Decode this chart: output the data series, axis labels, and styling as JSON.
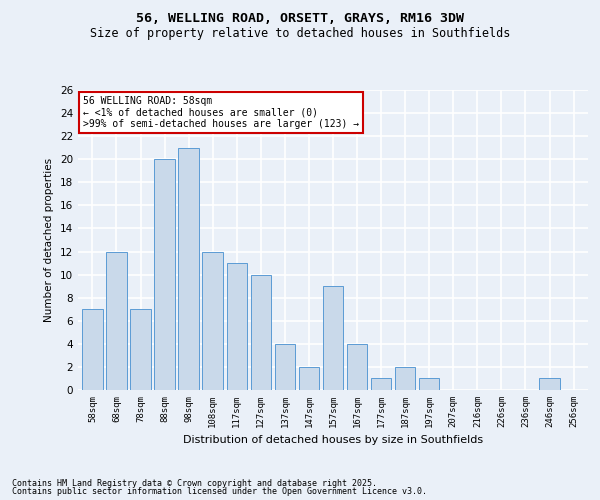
{
  "title": "56, WELLING ROAD, ORSETT, GRAYS, RM16 3DW",
  "subtitle": "Size of property relative to detached houses in Southfields",
  "xlabel": "Distribution of detached houses by size in Southfields",
  "ylabel": "Number of detached properties",
  "categories": [
    "58sqm",
    "68sqm",
    "78sqm",
    "88sqm",
    "98sqm",
    "108sqm",
    "117sqm",
    "127sqm",
    "137sqm",
    "147sqm",
    "157sqm",
    "167sqm",
    "177sqm",
    "187sqm",
    "197sqm",
    "207sqm",
    "216sqm",
    "226sqm",
    "236sqm",
    "246sqm",
    "256sqm"
  ],
  "values": [
    7,
    12,
    7,
    20,
    21,
    12,
    11,
    10,
    4,
    2,
    9,
    4,
    1,
    2,
    1,
    0,
    0,
    0,
    0,
    1,
    0
  ],
  "bar_color": "#c9d9ea",
  "bar_edge_color": "#5b9bd5",
  "background_color": "#eaf0f8",
  "plot_bg_color": "#eaf0f8",
  "grid_color": "#ffffff",
  "annotation_line1": "56 WELLING ROAD: 58sqm",
  "annotation_line2": "← <1% of detached houses are smaller (0)",
  "annotation_line3": ">99% of semi-detached houses are larger (123) →",
  "annotation_box_color": "#ffffff",
  "annotation_border_color": "#cc0000",
  "footer_line1": "Contains HM Land Registry data © Crown copyright and database right 2025.",
  "footer_line2": "Contains public sector information licensed under the Open Government Licence v3.0.",
  "ylim": [
    0,
    26
  ],
  "yticks": [
    0,
    2,
    4,
    6,
    8,
    10,
    12,
    14,
    16,
    18,
    20,
    22,
    24,
    26
  ]
}
